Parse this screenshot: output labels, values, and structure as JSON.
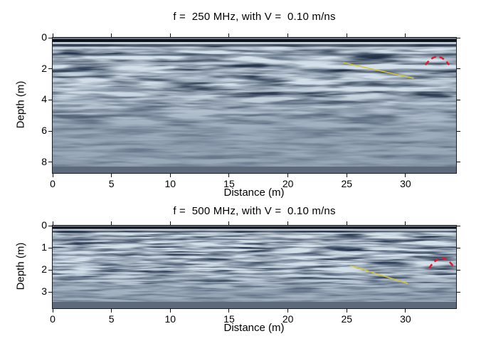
{
  "figure": {
    "background": "#ffffff",
    "kind": "GPR radargram comparison, two stacked depth sections"
  },
  "chart_data": [
    {
      "type": "heatmap",
      "title": "f =  250 MHz, with V =  0.10 m/ns",
      "xlabel": "Distance (m)",
      "ylabel": "Depth (m)",
      "xlim": [
        0,
        34.3
      ],
      "ylim": [
        0,
        8.7
      ],
      "y_axis_direction": "down",
      "x_ticks": [
        0,
        5,
        10,
        15,
        20,
        25,
        30
      ],
      "y_ticks": [
        0,
        2,
        4,
        6,
        8
      ],
      "grid": false,
      "palette": {
        "base": "#8494a6",
        "dark_wiggle": "#2e3a4c",
        "light_wiggle": "#c6d0d9",
        "surface_band": "#0d1119",
        "basal_band": "#5d6a7b"
      },
      "annotations": [
        {
          "kind": "line",
          "label": "dipping-interface",
          "color": "#d4c62f",
          "dashed": false,
          "points": [
            [
              24.7,
              1.6
            ],
            [
              30.7,
              2.61
            ]
          ]
        },
        {
          "kind": "arc",
          "label": "diffraction-hyperbola",
          "color": "#e4182d",
          "dashed": true,
          "points": [
            [
              31.7,
              1.75
            ],
            [
              32.7,
              1.22
            ],
            [
              33.7,
              1.75
            ]
          ]
        }
      ]
    },
    {
      "type": "heatmap",
      "title": "f =  500 MHz, with V =  0.10 m/ns",
      "xlabel": "Distance (m)",
      "ylabel": "Depth (m)",
      "xlim": [
        0,
        34.3
      ],
      "ylim": [
        0,
        3.74
      ],
      "y_axis_direction": "down",
      "x_ticks": [
        0,
        5,
        10,
        15,
        20,
        25,
        30
      ],
      "y_ticks": [
        0,
        1,
        2,
        3
      ],
      "grid": false,
      "palette": {
        "base": "#8494a6",
        "dark_wiggle": "#2e3a4c",
        "light_wiggle": "#c6d0d9",
        "surface_band": "#0d1119",
        "basal_band": "#5d6a7b"
      },
      "annotations": [
        {
          "kind": "line",
          "label": "dipping-interface",
          "color": "#d4c62f",
          "dashed": false,
          "points": [
            [
              25.3,
              1.81
            ],
            [
              30.2,
              2.62
            ]
          ]
        },
        {
          "kind": "arc",
          "label": "diffraction-hyperbola",
          "color": "#e4182d",
          "dashed": true,
          "points": [
            [
              32.0,
              1.93
            ],
            [
              33.05,
              1.48
            ],
            [
              34.1,
              1.87
            ]
          ]
        }
      ]
    }
  ]
}
